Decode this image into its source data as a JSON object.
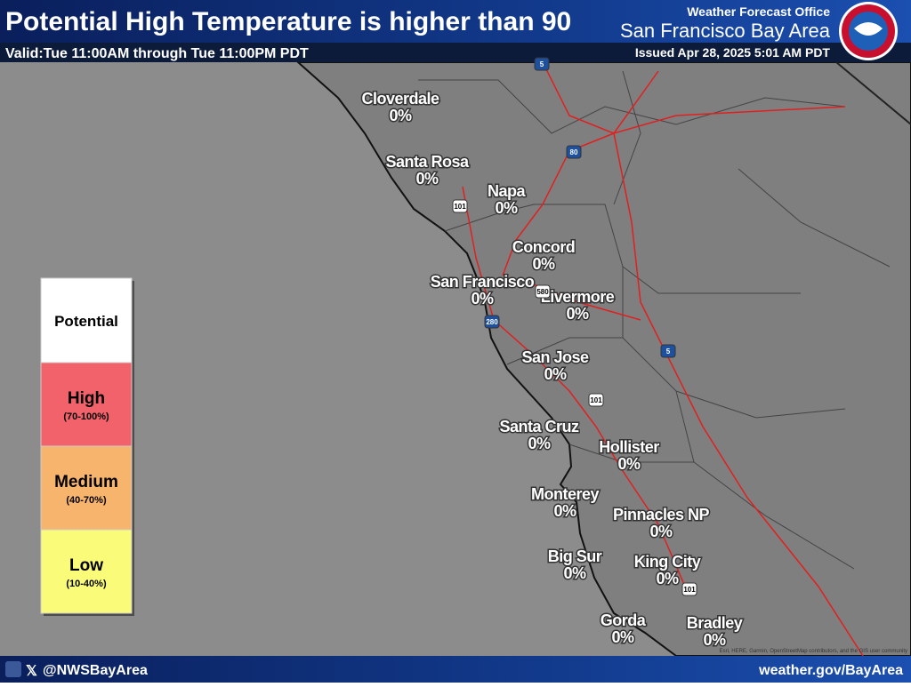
{
  "header": {
    "title": "Potential High Temperature is higher than 90",
    "valid": "Valid:Tue 11:00AM through Tue 11:00PM PDT",
    "office": "Weather Forecast Office",
    "region": "San Francisco Bay Area",
    "issued": "Issued Apr 28, 2025 5:01 AM PDT"
  },
  "legend": {
    "title": "Potential",
    "items": [
      {
        "label": "High",
        "range": "(70-100%)",
        "color": "#f2626b"
      },
      {
        "label": "Medium",
        "range": "(40-70%)",
        "color": "#f7b46c"
      },
      {
        "label": "Low",
        "range": "(10-40%)",
        "color": "#fbfb7a"
      }
    ]
  },
  "cities": [
    {
      "name": "Cloverdale",
      "value": "0%"
    },
    {
      "name": "Santa Rosa",
      "value": "0%"
    },
    {
      "name": "Napa",
      "value": "0%"
    },
    {
      "name": "Concord",
      "value": "0%"
    },
    {
      "name": "San Francisco",
      "value": "0%"
    },
    {
      "name": "Livermore",
      "value": "0%"
    },
    {
      "name": "San Jose",
      "value": "0%"
    },
    {
      "name": "Santa Cruz",
      "value": "0%"
    },
    {
      "name": "Hollister",
      "value": "0%"
    },
    {
      "name": "Monterey",
      "value": "0%"
    },
    {
      "name": "Pinnacles NP",
      "value": "0%"
    },
    {
      "name": "Big Sur",
      "value": "0%"
    },
    {
      "name": "King City",
      "value": "0%"
    },
    {
      "name": "Gorda",
      "value": "0%"
    },
    {
      "name": "Bradley",
      "value": "0%"
    }
  ],
  "highways": [
    "5",
    "80",
    "101",
    "280",
    "580",
    "5",
    "101",
    "101"
  ],
  "attribution": "Esri, HERE, Garmin, OpenStreetMap contributors, and the GIS user community",
  "footer": {
    "handle": "@NWSBayArea",
    "url": "weather.gov/BayArea"
  }
}
